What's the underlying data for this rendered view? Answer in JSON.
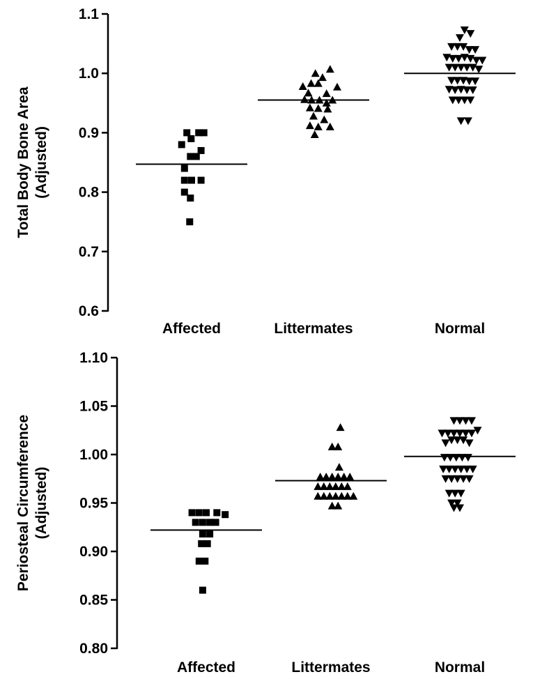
{
  "chart_data": [
    {
      "type": "scatter",
      "title": "",
      "ylabel": [
        "Total Body Bone Area",
        "(Adjusted)"
      ],
      "xlabel": "",
      "categories": [
        "Affected",
        "Littermates",
        "Normal"
      ],
      "ylim": [
        0.6,
        1.1
      ],
      "yticks": [
        0.6,
        0.7,
        0.8,
        0.9,
        1.0,
        1.1
      ],
      "ytick_labels": [
        "0.6",
        "0.7",
        "0.8",
        "0.9",
        "1.0",
        "1.1"
      ],
      "series": [
        {
          "category": "Affected",
          "marker": "square",
          "mean": 0.847,
          "points": [
            {
              "offset": -0.42,
              "y": 0.88
            },
            {
              "offset": -0.2,
              "y": 0.9
            },
            {
              "offset": -0.02,
              "y": 0.89
            },
            {
              "offset": 0.3,
              "y": 0.9
            },
            {
              "offset": 0.52,
              "y": 0.9
            },
            {
              "offset": -0.05,
              "y": 0.86
            },
            {
              "offset": 0.2,
              "y": 0.86
            },
            {
              "offset": 0.4,
              "y": 0.87
            },
            {
              "offset": -0.3,
              "y": 0.84
            },
            {
              "offset": -0.3,
              "y": 0.82
            },
            {
              "offset": 0.0,
              "y": 0.82
            },
            {
              "offset": 0.4,
              "y": 0.82
            },
            {
              "offset": -0.3,
              "y": 0.8
            },
            {
              "offset": -0.05,
              "y": 0.79
            },
            {
              "offset": -0.08,
              "y": 0.75
            }
          ]
        },
        {
          "category": "Littermates",
          "marker": "triangle-up",
          "mean": 0.955,
          "points": [
            {
              "offset": 0.7,
              "y": 1.007
            },
            {
              "offset": 0.08,
              "y": 1.0
            },
            {
              "offset": 0.38,
              "y": 0.993
            },
            {
              "offset": -0.45,
              "y": 0.978
            },
            {
              "offset": -0.1,
              "y": 0.983
            },
            {
              "offset": 0.2,
              "y": 0.983
            },
            {
              "offset": 1.0,
              "y": 0.977
            },
            {
              "offset": -0.22,
              "y": 0.967
            },
            {
              "offset": 0.55,
              "y": 0.966
            },
            {
              "offset": -0.38,
              "y": 0.956
            },
            {
              "offset": -0.08,
              "y": 0.955
            },
            {
              "offset": 0.25,
              "y": 0.955
            },
            {
              "offset": 0.55,
              "y": 0.95
            },
            {
              "offset": 0.8,
              "y": 0.955
            },
            {
              "offset": -0.15,
              "y": 0.942
            },
            {
              "offset": 0.2,
              "y": 0.941
            },
            {
              "offset": 0.6,
              "y": 0.94
            },
            {
              "offset": 0.0,
              "y": 0.928
            },
            {
              "offset": 0.45,
              "y": 0.922
            },
            {
              "offset": -0.15,
              "y": 0.912
            },
            {
              "offset": 0.2,
              "y": 0.91
            },
            {
              "offset": 0.7,
              "y": 0.91
            },
            {
              "offset": 0.05,
              "y": 0.897
            }
          ]
        },
        {
          "category": "Normal",
          "marker": "triangle-down",
          "mean": 1.0,
          "points": [
            {
              "offset": 0.2,
              "y": 1.073
            },
            {
              "offset": 0.45,
              "y": 1.067
            },
            {
              "offset": 0.0,
              "y": 1.06
            },
            {
              "offset": -0.35,
              "y": 1.045
            },
            {
              "offset": -0.1,
              "y": 1.045
            },
            {
              "offset": 0.15,
              "y": 1.045
            },
            {
              "offset": 0.4,
              "y": 1.04
            },
            {
              "offset": 0.65,
              "y": 1.04
            },
            {
              "offset": -0.55,
              "y": 1.027
            },
            {
              "offset": -0.3,
              "y": 1.025
            },
            {
              "offset": -0.05,
              "y": 1.025
            },
            {
              "offset": 0.2,
              "y": 1.027
            },
            {
              "offset": 0.45,
              "y": 1.025
            },
            {
              "offset": 0.7,
              "y": 1.022
            },
            {
              "offset": 0.95,
              "y": 1.022
            },
            {
              "offset": -0.45,
              "y": 1.01
            },
            {
              "offset": -0.2,
              "y": 1.01
            },
            {
              "offset": 0.05,
              "y": 1.01
            },
            {
              "offset": 0.3,
              "y": 1.01
            },
            {
              "offset": 0.55,
              "y": 1.01
            },
            {
              "offset": 0.8,
              "y": 1.007
            },
            {
              "offset": -0.35,
              "y": 0.988
            },
            {
              "offset": -0.1,
              "y": 0.988
            },
            {
              "offset": 0.15,
              "y": 0.988
            },
            {
              "offset": 0.4,
              "y": 0.987
            },
            {
              "offset": 0.65,
              "y": 0.987
            },
            {
              "offset": -0.45,
              "y": 0.973
            },
            {
              "offset": -0.2,
              "y": 0.972
            },
            {
              "offset": 0.05,
              "y": 0.973
            },
            {
              "offset": 0.3,
              "y": 0.972
            },
            {
              "offset": 0.55,
              "y": 0.972
            },
            {
              "offset": -0.3,
              "y": 0.955
            },
            {
              "offset": -0.05,
              "y": 0.955
            },
            {
              "offset": 0.2,
              "y": 0.955
            },
            {
              "offset": 0.45,
              "y": 0.955
            },
            {
              "offset": 0.05,
              "y": 0.92
            },
            {
              "offset": 0.35,
              "y": 0.92
            }
          ]
        }
      ]
    },
    {
      "type": "scatter",
      "title": "",
      "ylabel": [
        "Periosteal Circumference",
        "(Adjusted)"
      ],
      "xlabel": "",
      "categories": [
        "Affected",
        "Littermates",
        "Normal"
      ],
      "ylim": [
        0.8,
        1.1
      ],
      "yticks": [
        0.8,
        0.85,
        0.9,
        0.95,
        1.0,
        1.05,
        1.1
      ],
      "ytick_labels": [
        "0.80",
        "0.85",
        "0.90",
        "0.95",
        "1.00",
        "1.05",
        "1.10"
      ],
      "series": [
        {
          "category": "Affected",
          "marker": "square",
          "mean": 0.922,
          "points": [
            {
              "offset": -0.6,
              "y": 0.94
            },
            {
              "offset": -0.3,
              "y": 0.94
            },
            {
              "offset": 0.0,
              "y": 0.94
            },
            {
              "offset": 0.45,
              "y": 0.94
            },
            {
              "offset": 0.8,
              "y": 0.938
            },
            {
              "offset": -0.45,
              "y": 0.93
            },
            {
              "offset": -0.15,
              "y": 0.93
            },
            {
              "offset": 0.15,
              "y": 0.93
            },
            {
              "offset": 0.4,
              "y": 0.93
            },
            {
              "offset": -0.15,
              "y": 0.918
            },
            {
              "offset": 0.15,
              "y": 0.918
            },
            {
              "offset": -0.2,
              "y": 0.908
            },
            {
              "offset": 0.05,
              "y": 0.908
            },
            {
              "offset": -0.3,
              "y": 0.89
            },
            {
              "offset": -0.05,
              "y": 0.89
            },
            {
              "offset": -0.15,
              "y": 0.86
            }
          ]
        },
        {
          "category": "Littermates",
          "marker": "triangle-up",
          "mean": 0.973,
          "points": [
            {
              "offset": 0.4,
              "y": 1.028
            },
            {
              "offset": 0.05,
              "y": 1.008
            },
            {
              "offset": 0.3,
              "y": 1.008
            },
            {
              "offset": 0.35,
              "y": 0.987
            },
            {
              "offset": -0.45,
              "y": 0.977
            },
            {
              "offset": -0.2,
              "y": 0.977
            },
            {
              "offset": 0.05,
              "y": 0.977
            },
            {
              "offset": 0.3,
              "y": 0.977
            },
            {
              "offset": 0.55,
              "y": 0.977
            },
            {
              "offset": 0.8,
              "y": 0.977
            },
            {
              "offset": -0.55,
              "y": 0.967
            },
            {
              "offset": -0.3,
              "y": 0.967
            },
            {
              "offset": -0.05,
              "y": 0.967
            },
            {
              "offset": 0.2,
              "y": 0.967
            },
            {
              "offset": 0.45,
              "y": 0.967
            },
            {
              "offset": 0.7,
              "y": 0.967
            },
            {
              "offset": -0.55,
              "y": 0.957
            },
            {
              "offset": -0.3,
              "y": 0.957
            },
            {
              "offset": -0.05,
              "y": 0.957
            },
            {
              "offset": 0.2,
              "y": 0.957
            },
            {
              "offset": 0.45,
              "y": 0.957
            },
            {
              "offset": 0.7,
              "y": 0.957
            },
            {
              "offset": 0.95,
              "y": 0.957
            },
            {
              "offset": 0.05,
              "y": 0.947
            },
            {
              "offset": 0.3,
              "y": 0.947
            }
          ]
        },
        {
          "category": "Normal",
          "marker": "triangle-down",
          "mean": 0.998,
          "points": [
            {
              "offset": -0.25,
              "y": 1.035
            },
            {
              "offset": 0.0,
              "y": 1.035
            },
            {
              "offset": 0.25,
              "y": 1.035
            },
            {
              "offset": 0.5,
              "y": 1.035
            },
            {
              "offset": -0.75,
              "y": 1.022
            },
            {
              "offset": -0.5,
              "y": 1.022
            },
            {
              "offset": -0.25,
              "y": 1.022
            },
            {
              "offset": 0.0,
              "y": 1.022
            },
            {
              "offset": 0.25,
              "y": 1.022
            },
            {
              "offset": 0.5,
              "y": 1.022
            },
            {
              "offset": 0.75,
              "y": 1.025
            },
            {
              "offset": -0.6,
              "y": 1.012
            },
            {
              "offset": -0.35,
              "y": 1.015
            },
            {
              "offset": -0.1,
              "y": 1.015
            },
            {
              "offset": 0.15,
              "y": 1.015
            },
            {
              "offset": 0.4,
              "y": 1.012
            },
            {
              "offset": -0.65,
              "y": 0.997
            },
            {
              "offset": -0.4,
              "y": 0.997
            },
            {
              "offset": -0.15,
              "y": 0.997
            },
            {
              "offset": 0.1,
              "y": 0.997
            },
            {
              "offset": 0.35,
              "y": 0.997
            },
            {
              "offset": -0.7,
              "y": 0.985
            },
            {
              "offset": -0.45,
              "y": 0.985
            },
            {
              "offset": -0.2,
              "y": 0.985
            },
            {
              "offset": 0.05,
              "y": 0.985
            },
            {
              "offset": 0.3,
              "y": 0.985
            },
            {
              "offset": 0.55,
              "y": 0.985
            },
            {
              "offset": -0.6,
              "y": 0.975
            },
            {
              "offset": -0.35,
              "y": 0.975
            },
            {
              "offset": -0.1,
              "y": 0.975
            },
            {
              "offset": 0.15,
              "y": 0.975
            },
            {
              "offset": 0.4,
              "y": 0.975
            },
            {
              "offset": -0.45,
              "y": 0.96
            },
            {
              "offset": -0.2,
              "y": 0.96
            },
            {
              "offset": 0.05,
              "y": 0.96
            },
            {
              "offset": -0.35,
              "y": 0.95
            },
            {
              "offset": -0.1,
              "y": 0.95
            },
            {
              "offset": -0.25,
              "y": 0.945
            },
            {
              "offset": 0.0,
              "y": 0.945
            }
          ]
        }
      ]
    }
  ]
}
